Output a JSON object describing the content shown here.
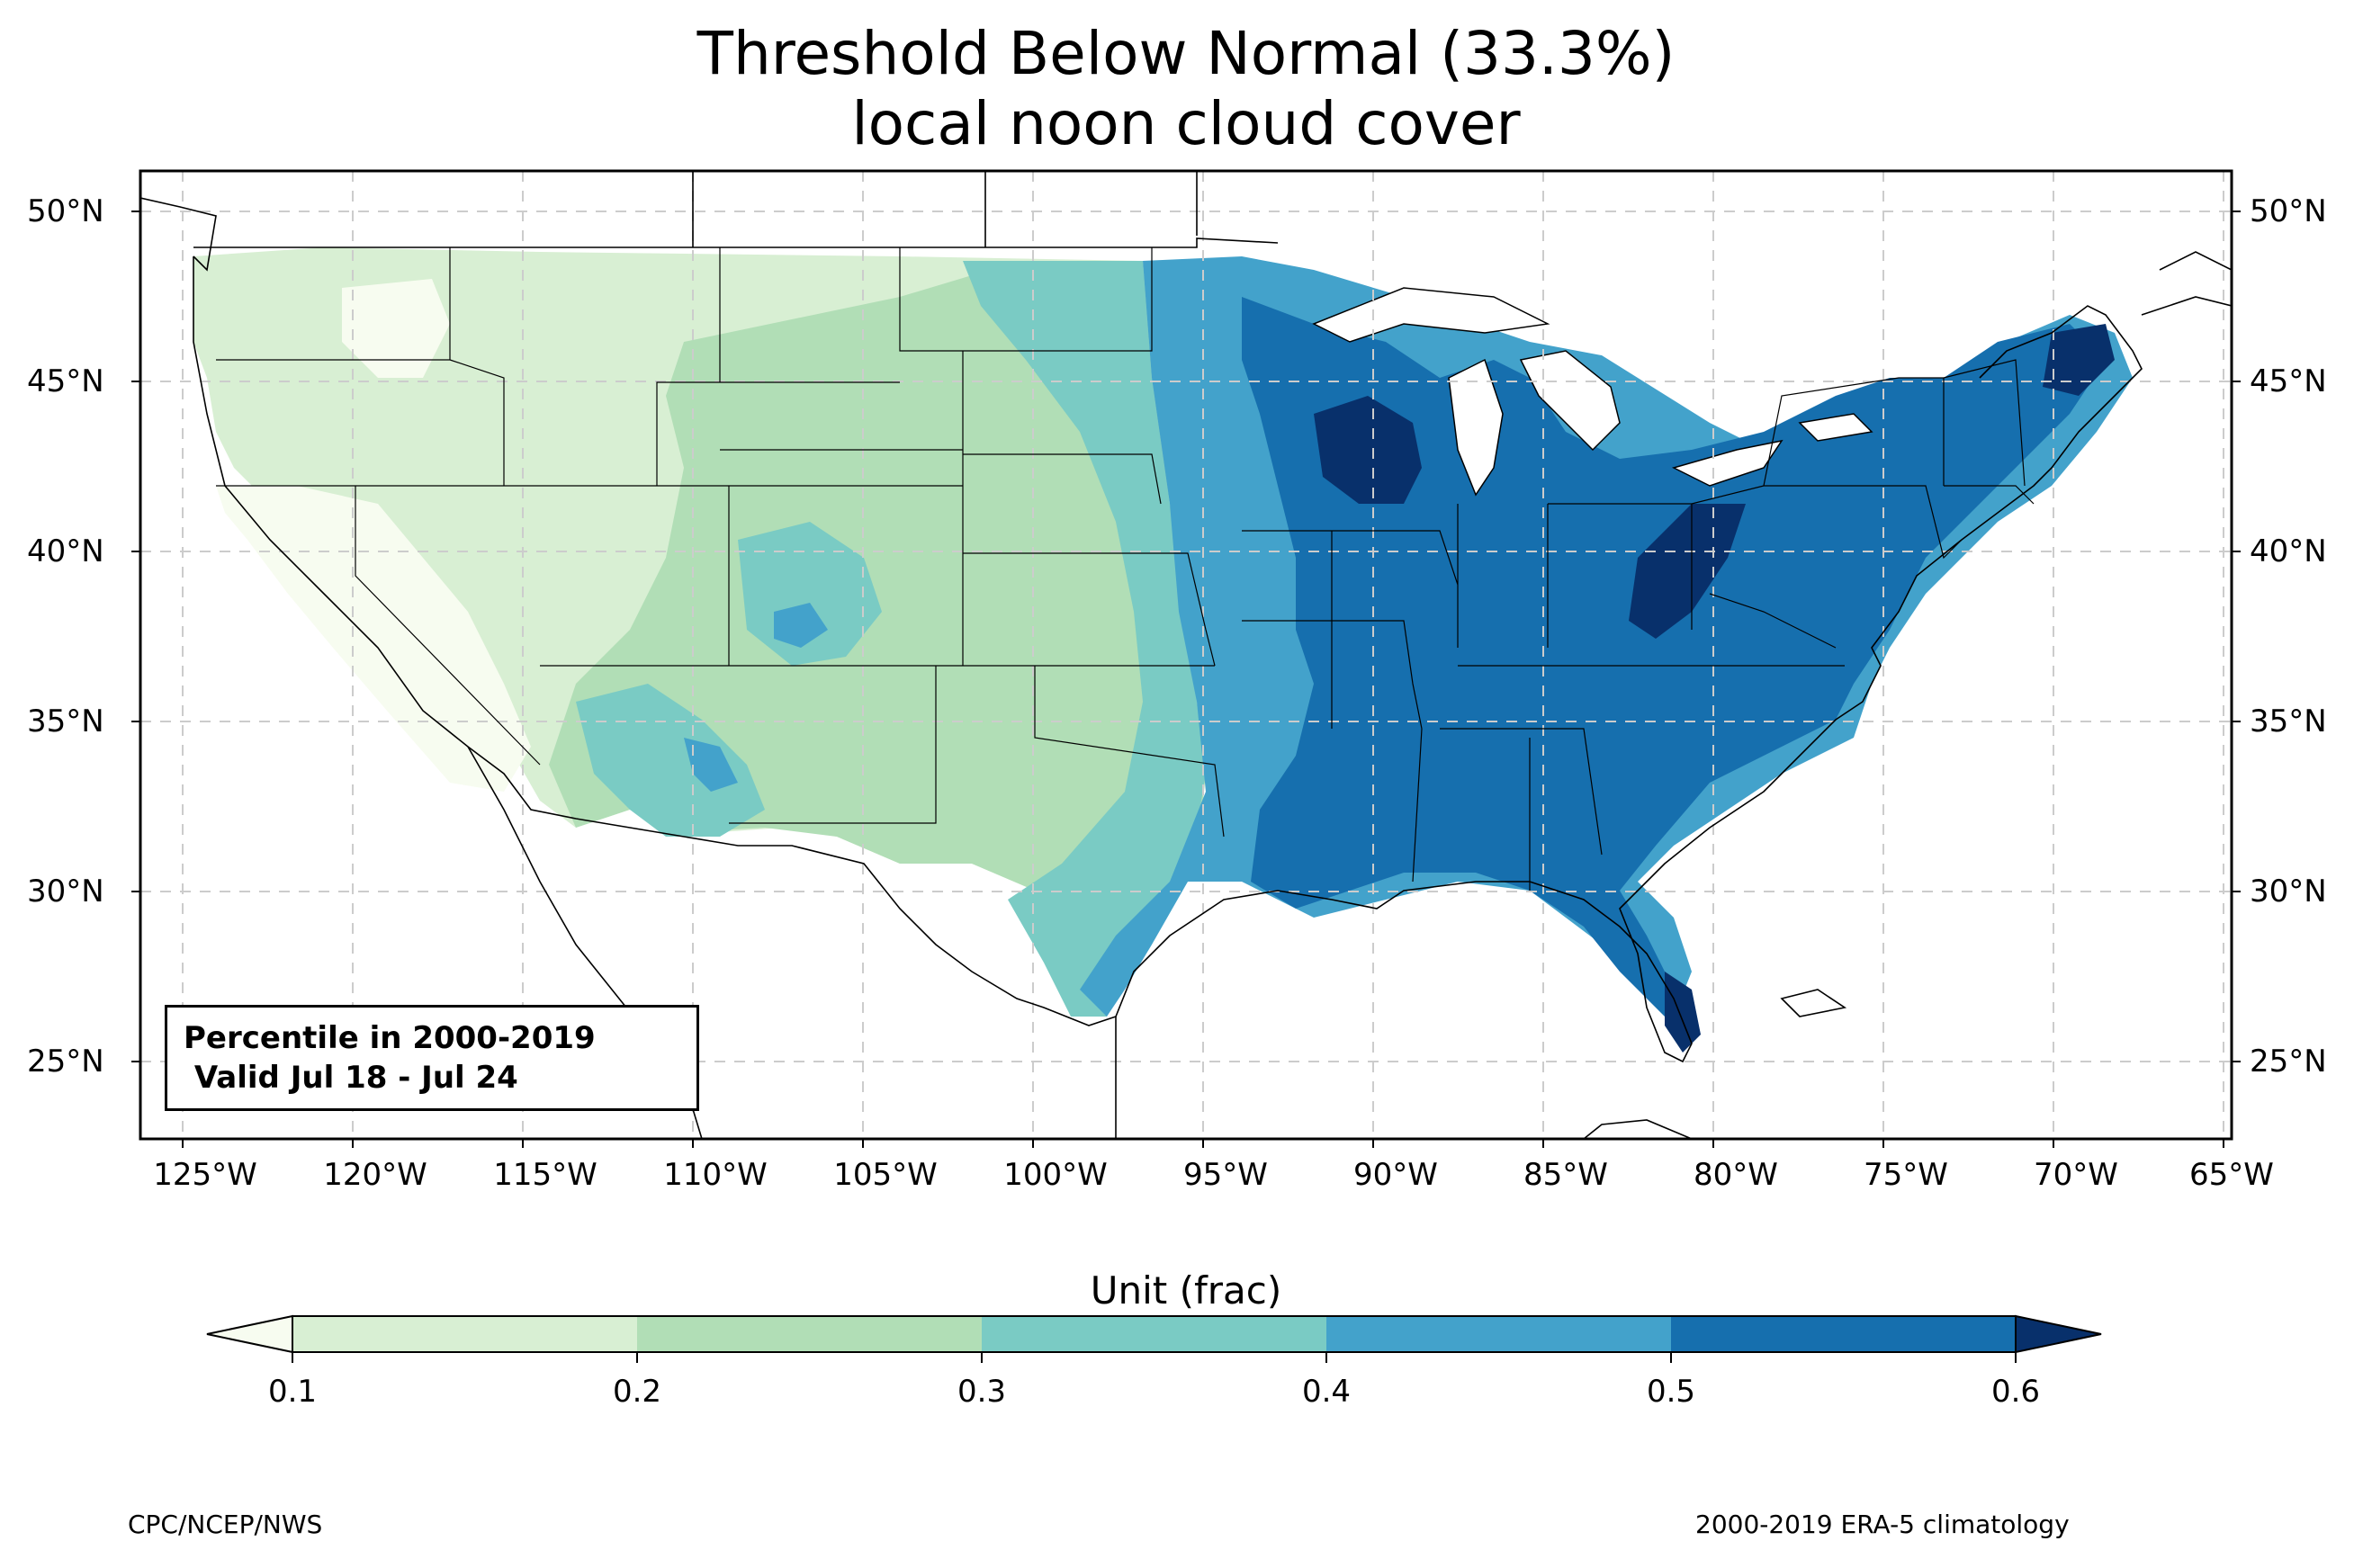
{
  "title": {
    "line1": "Threshold Below Normal (33.3%)",
    "line2": "local noon cloud cover"
  },
  "axes": {
    "lat_labels": [
      "50°N",
      "45°N",
      "40°N",
      "35°N",
      "30°N",
      "25°N"
    ],
    "lon_labels": [
      "125°W",
      "120°W",
      "115°W",
      "110°W",
      "105°W",
      "100°W",
      "95°W",
      "90°W",
      "85°W",
      "80°W",
      "75°W",
      "70°W",
      "65°W"
    ],
    "lat_range": [
      22.7,
      51.2
    ],
    "lon_range": [
      -126.3,
      -64.9
    ],
    "gridlines": true
  },
  "info_box": {
    "line1": "Percentile in 2000-2019",
    "line2": " Valid Jul 18 - Jul 24"
  },
  "colorbar": {
    "title": "Unit (frac)",
    "ticks": [
      "0.1",
      "0.2",
      "0.3",
      "0.4",
      "0.5",
      "0.6"
    ],
    "bins": [
      {
        "range": "< 0.1",
        "color": "#f7fcf0"
      },
      {
        "range": "0.1-0.2",
        "color": "#d8efd3"
      },
      {
        "range": "0.2-0.3",
        "color": "#b1deb6"
      },
      {
        "range": "0.3-0.4",
        "color": "#7acbc4"
      },
      {
        "range": "0.4-0.5",
        "color": "#43a2cb"
      },
      {
        "range": "0.5-0.6",
        "color": "#166fae"
      },
      {
        "range": "> 0.6",
        "color": "#08306b"
      }
    ],
    "extend": "both"
  },
  "footer": {
    "left": "CPC/NCEP/NWS",
    "right": "2000-2019 ERA-5 climatology"
  },
  "map_data": {
    "type": "filled-contour",
    "region": "CONUS",
    "variable": "local noon cloud cover threshold below normal",
    "pattern": "lowest in California/Great Basin (< 0.1-0.2), increasing eastward; highest over Wisconsin, Appalachians, New England and Florida (> 0.6)"
  }
}
